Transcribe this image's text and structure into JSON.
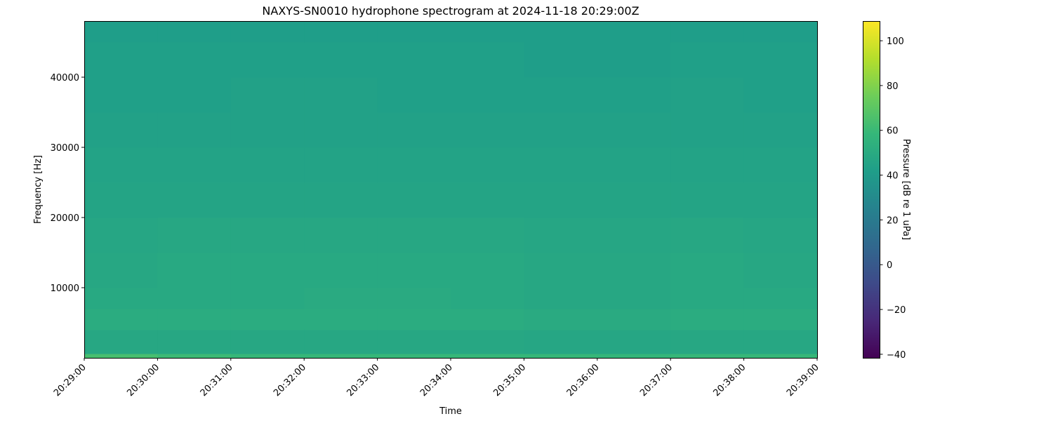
{
  "chart_data": {
    "type": "heatmap",
    "title": "NAXYS-SN0010 hydrophone spectrogram at 2024-11-18 20:29:00Z",
    "xlabel": "Time",
    "ylabel": "Frequency [Hz]",
    "colorbar_label": "Pressure [dB re 1 uPa]",
    "colormap": "viridis",
    "x_tick_labels": [
      "20:29:00",
      "20:30:00",
      "20:31:00",
      "20:32:00",
      "20:33:00",
      "20:34:00",
      "20:35:00",
      "20:36:00",
      "20:37:00",
      "20:38:00",
      "20:39:00"
    ],
    "xlim": [
      "20:29:00",
      "20:39:00"
    ],
    "y_ticks": [
      10000,
      20000,
      30000,
      40000
    ],
    "ylim": [
      0,
      48000
    ],
    "colorbar_ticks": [
      -40,
      -20,
      0,
      20,
      40,
      60,
      80,
      100
    ],
    "clim": [
      -41.6,
      108.8
    ],
    "time_bins": [
      "20:29",
      "20:30",
      "20:31",
      "20:32",
      "20:33",
      "20:34",
      "20:35",
      "20:36",
      "20:37",
      "20:38"
    ],
    "freq_bin_edges": [
      0,
      600,
      4000,
      7000,
      10000,
      15000,
      20000,
      25000,
      30000,
      35000,
      40000,
      45000,
      48000
    ],
    "values_db": [
      [
        64,
        48,
        51,
        49,
        48,
        47,
        46,
        45,
        44,
        43,
        43,
        42
      ],
      [
        61,
        48,
        51,
        49,
        49,
        48,
        46,
        45,
        44,
        43,
        43,
        42
      ],
      [
        59,
        48,
        51,
        49,
        49,
        48,
        46,
        45,
        44,
        44,
        43,
        42
      ],
      [
        59,
        48,
        51,
        50,
        49,
        48,
        46,
        45,
        44,
        44,
        43,
        42
      ],
      [
        59,
        48,
        51,
        50,
        49,
        48,
        46,
        45,
        44,
        43,
        43,
        42
      ],
      [
        59,
        48,
        51,
        49,
        49,
        48,
        46,
        45,
        44,
        43,
        43,
        42
      ],
      [
        59,
        47,
        50,
        48,
        48,
        47,
        46,
        45,
        44,
        43,
        42,
        42
      ],
      [
        58,
        47,
        50,
        48,
        48,
        47,
        46,
        45,
        44,
        43,
        42,
        42
      ],
      [
        59,
        48,
        51,
        49,
        49,
        48,
        46,
        45,
        44,
        44,
        43,
        42
      ],
      [
        59,
        48,
        51,
        49,
        48,
        47,
        46,
        45,
        44,
        43,
        43,
        42
      ]
    ]
  }
}
